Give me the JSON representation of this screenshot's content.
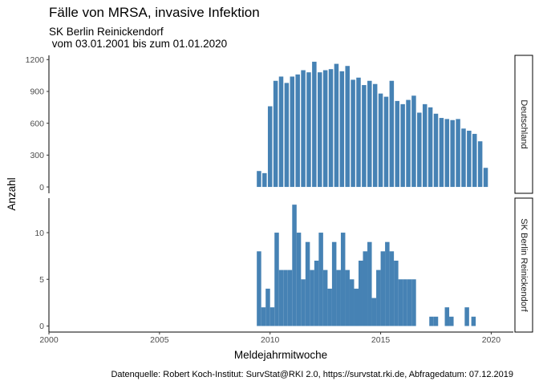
{
  "chart_data": {
    "type": "bar",
    "title": "Fälle von MRSA, invasive Infektion",
    "subtitle_line1": "SK Berlin Reinickendorf",
    "subtitle_line2": " vom 03.01.2001 bis zum 01.01.2020",
    "xlabel": "Meldejahrmitwoche",
    "ylabel": "Anzahl",
    "caption": "Datenquelle: Robert Koch-Institut: SurvStat@RKI 2.0, https://survstat.rki.de, Abfragedatum: 07.12.2019",
    "bar_color": "#4682b4",
    "xlim": [
      2000,
      2021
    ],
    "x_ticks": [
      2000,
      2005,
      2010,
      2015,
      2020
    ],
    "panels": [
      {
        "strip": "Deutschland",
        "ylim": [
          -60,
          1240
        ],
        "y_ticks": [
          0,
          300,
          600,
          900,
          1200
        ],
        "points": [
          [
            2009.5,
            150
          ],
          [
            2009.75,
            130
          ],
          [
            2010.0,
            760
          ],
          [
            2010.25,
            1000
          ],
          [
            2010.5,
            1040
          ],
          [
            2010.75,
            980
          ],
          [
            2011.0,
            1040
          ],
          [
            2011.25,
            1060
          ],
          [
            2011.5,
            1100
          ],
          [
            2011.75,
            1080
          ],
          [
            2012.0,
            1180
          ],
          [
            2012.25,
            1080
          ],
          [
            2012.5,
            1100
          ],
          [
            2012.75,
            1110
          ],
          [
            2013.0,
            1160
          ],
          [
            2013.25,
            1090
          ],
          [
            2013.5,
            1140
          ],
          [
            2013.75,
            1010
          ],
          [
            2014.0,
            1030
          ],
          [
            2014.25,
            960
          ],
          [
            2014.5,
            1000
          ],
          [
            2014.75,
            970
          ],
          [
            2015.0,
            880
          ],
          [
            2015.25,
            850
          ],
          [
            2015.5,
            1000
          ],
          [
            2015.75,
            810
          ],
          [
            2016.0,
            780
          ],
          [
            2016.25,
            820
          ],
          [
            2016.5,
            860
          ],
          [
            2016.75,
            700
          ],
          [
            2017.0,
            780
          ],
          [
            2017.25,
            750
          ],
          [
            2017.5,
            690
          ],
          [
            2017.75,
            650
          ],
          [
            2018.0,
            640
          ],
          [
            2018.25,
            630
          ],
          [
            2018.5,
            640
          ],
          [
            2018.75,
            550
          ],
          [
            2019.0,
            530
          ],
          [
            2019.25,
            500
          ],
          [
            2019.5,
            430
          ],
          [
            2019.75,
            180
          ]
        ]
      },
      {
        "strip": "SK Berlin Reinickendorf",
        "ylim": [
          -0.65,
          13.7
        ],
        "y_ticks": [
          0,
          5,
          10
        ],
        "points": [
          [
            2009.5,
            8
          ],
          [
            2009.7,
            2
          ],
          [
            2009.9,
            4
          ],
          [
            2010.1,
            2
          ],
          [
            2010.3,
            10
          ],
          [
            2010.5,
            6
          ],
          [
            2010.7,
            6
          ],
          [
            2010.9,
            6
          ],
          [
            2011.1,
            13
          ],
          [
            2011.3,
            10
          ],
          [
            2011.5,
            5
          ],
          [
            2011.7,
            9
          ],
          [
            2011.9,
            6
          ],
          [
            2012.1,
            7
          ],
          [
            2012.3,
            10
          ],
          [
            2012.5,
            6
          ],
          [
            2012.7,
            4
          ],
          [
            2012.9,
            9
          ],
          [
            2013.1,
            6
          ],
          [
            2013.3,
            10
          ],
          [
            2013.5,
            6
          ],
          [
            2013.7,
            5
          ],
          [
            2013.9,
            4
          ],
          [
            2014.1,
            7
          ],
          [
            2014.3,
            8
          ],
          [
            2014.5,
            9
          ],
          [
            2014.7,
            3
          ],
          [
            2014.9,
            6
          ],
          [
            2015.1,
            8
          ],
          [
            2015.3,
            9
          ],
          [
            2015.5,
            8
          ],
          [
            2015.7,
            7
          ],
          [
            2015.9,
            5
          ],
          [
            2016.1,
            5
          ],
          [
            2016.3,
            5
          ],
          [
            2016.5,
            5
          ],
          [
            2017.3,
            1
          ],
          [
            2017.5,
            1
          ],
          [
            2018.0,
            2
          ],
          [
            2018.2,
            1
          ],
          [
            2018.9,
            2
          ],
          [
            2019.2,
            1
          ]
        ]
      }
    ]
  }
}
